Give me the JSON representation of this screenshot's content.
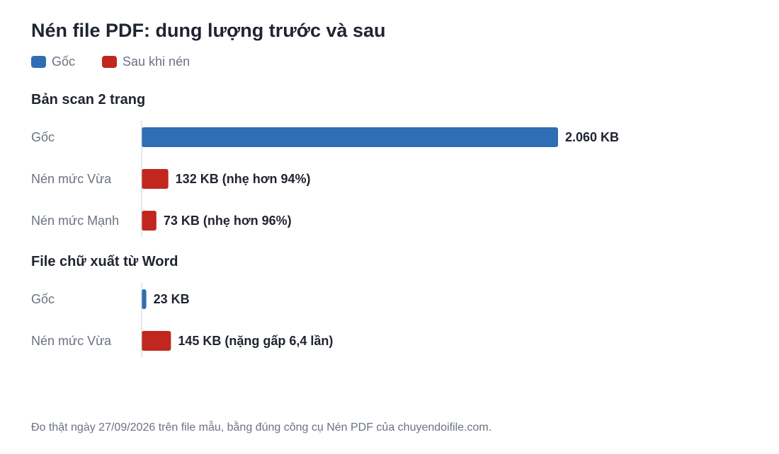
{
  "title": "Nén file PDF: dung lượng trước và sau",
  "legend": [
    {
      "label": "Gốc",
      "color": "#2f6db5"
    },
    {
      "label": "Sau khi nén",
      "color": "#c1261f"
    }
  ],
  "footer": "Đo thật ngày 27/09/2026 trên file mẫu, bằng đúng công cụ Nén PDF của chuyendoifile.com.",
  "chart_data": {
    "type": "bar",
    "orientation": "horizontal",
    "xlim": [
      0,
      2060
    ],
    "grid": false,
    "legend_placement": "top-left",
    "groups": [
      {
        "name": "Bản scan 2 trang",
        "bars": [
          {
            "label": "Gốc",
            "value": 2060,
            "series": "Gốc",
            "text": "2.060 KB"
          },
          {
            "label": "Nén mức Vừa",
            "value": 132,
            "series": "Sau khi nén",
            "text": "132 KB  (nhẹ hơn 94%)"
          },
          {
            "label": "Nén mức Mạnh",
            "value": 73,
            "series": "Sau khi nén",
            "text": "73 KB  (nhẹ hơn 96%)"
          }
        ]
      },
      {
        "name": "File chữ xuất từ Word",
        "bars": [
          {
            "label": "Gốc",
            "value": 23,
            "series": "Gốc",
            "text": "23 KB"
          },
          {
            "label": "Nén mức Vừa",
            "value": 145,
            "series": "Sau khi nén",
            "text": "145 KB  (nặng gấp 6,4 lần)"
          }
        ]
      }
    ]
  }
}
